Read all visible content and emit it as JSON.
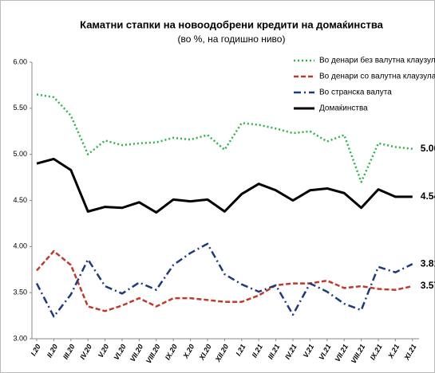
{
  "chart_data": {
    "type": "line",
    "title": "Каматни стапки на новоодобрени кредити на домаќинства",
    "subtitle": "(во %, на годишно ниво)",
    "categories": [
      "I.20",
      "II.20",
      "III.20",
      "IV.20",
      "V.20",
      "VI.20",
      "VII.20",
      "VIII.20",
      "IX.20",
      "X.20",
      "XI.20",
      "XII.20",
      "I.21",
      "II.21",
      "III.21",
      "IV.21",
      "V.21",
      "VI.21",
      "VII.21",
      "VIII.21",
      "IX.21",
      "X.21",
      "XI.21"
    ],
    "series": [
      {
        "name": "Во денари без валутна клаузула",
        "color": "#2db34a",
        "line_style": "dotted",
        "values": [
          5.65,
          5.62,
          5.42,
          5.0,
          5.15,
          5.1,
          5.12,
          5.13,
          5.18,
          5.16,
          5.21,
          5.05,
          5.34,
          5.32,
          5.28,
          5.23,
          5.25,
          5.14,
          5.21,
          4.7,
          5.12,
          5.08,
          5.06
        ]
      },
      {
        "name": "Во денари со валутна клаузула",
        "color": "#c0392b",
        "line_style": "dashed",
        "values": [
          3.74,
          3.95,
          3.8,
          3.35,
          3.3,
          3.36,
          3.44,
          3.35,
          3.44,
          3.44,
          3.42,
          3.4,
          3.4,
          3.47,
          3.58,
          3.6,
          3.6,
          3.63,
          3.55,
          3.57,
          3.54,
          3.53,
          3.57
        ]
      },
      {
        "name": "Во странска валута",
        "color": "#1f3a7a",
        "line_style": "dashdot",
        "values": [
          3.6,
          3.24,
          3.48,
          3.86,
          3.57,
          3.49,
          3.61,
          3.53,
          3.8,
          3.93,
          4.03,
          3.7,
          3.59,
          3.51,
          3.58,
          3.26,
          3.6,
          3.51,
          3.38,
          3.31,
          3.78,
          3.72,
          3.81
        ]
      },
      {
        "name": "Домаќинства",
        "color": "#000000",
        "line_style": "solid",
        "values": [
          4.9,
          4.95,
          4.83,
          4.38,
          4.43,
          4.42,
          4.48,
          4.37,
          4.51,
          4.49,
          4.51,
          4.38,
          4.57,
          4.68,
          4.61,
          4.5,
          4.61,
          4.63,
          4.58,
          4.42,
          4.62,
          4.54,
          4.54
        ]
      }
    ],
    "ylim": [
      3,
      6
    ],
    "yticks": [
      {
        "value": 3,
        "label": "3.00"
      },
      {
        "value": 3.5,
        "label": "3.50"
      },
      {
        "value": 4,
        "label": "4.00"
      },
      {
        "value": 4.5,
        "label": "4.50"
      },
      {
        "value": 5,
        "label": "5.00"
      },
      {
        "value": 5.5,
        "label": "5.50"
      },
      {
        "value": 6,
        "label": "6.00"
      }
    ],
    "grid": false,
    "legend": "top-right",
    "end_labels": true
  }
}
